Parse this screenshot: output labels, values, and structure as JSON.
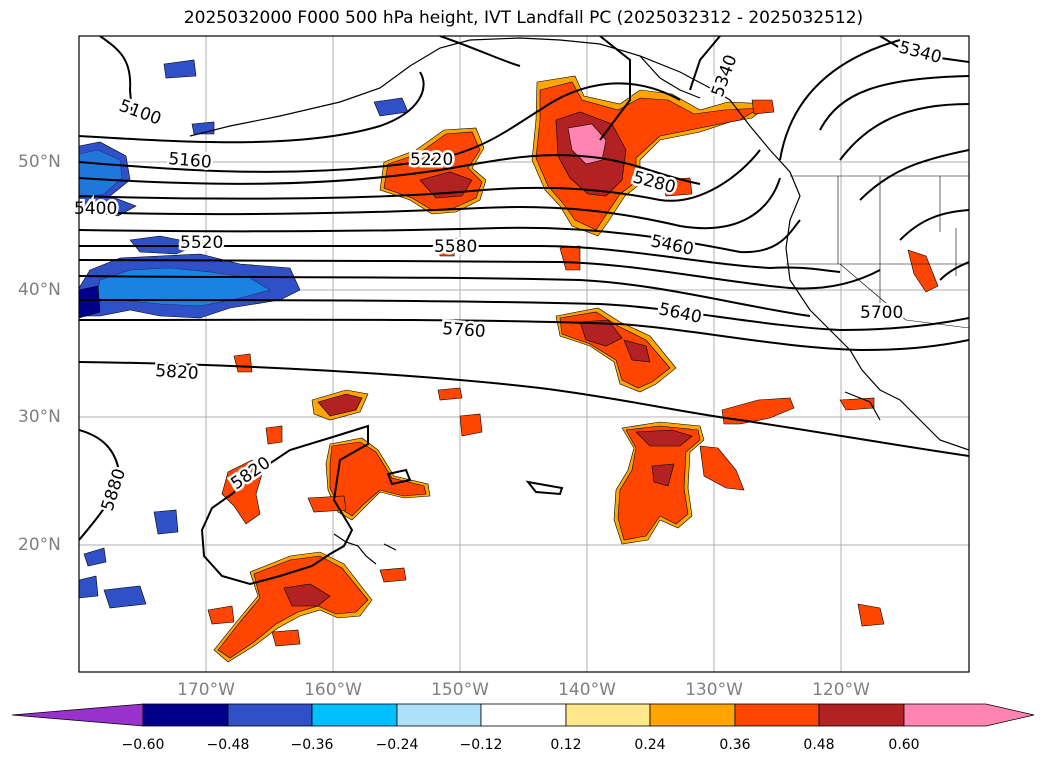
{
  "title": "2025032000 F000 500 hPa height, IVT Landfall PC (2025032312 - 2025032512)",
  "lat_labels": [
    "50°N",
    "40°N",
    "30°N",
    "20°N"
  ],
  "lon_labels": [
    "170°W",
    "160°W",
    "150°W",
    "140°W",
    "130°W",
    "120°W"
  ],
  "contour_labels": [
    "5100",
    "5160",
    "5220",
    "5280",
    "5340",
    "5400",
    "5460",
    "5520",
    "5580",
    "5640",
    "5700",
    "5760",
    "5820",
    "5820",
    "5880"
  ],
  "colorbar": {
    "ticks": [
      "−0.60",
      "−0.48",
      "−0.36",
      "−0.24",
      "−0.12",
      "0.12",
      "0.24",
      "0.36",
      "0.48",
      "0.60"
    ],
    "colors": [
      "#9932cc",
      "#00008b",
      "#3050c8",
      "#00bfff",
      "#aee0f8",
      "#ffffff",
      "#ffe88a",
      "#ffa500",
      "#ff4500",
      "#b22222",
      "#ff85b0",
      "#ff85b0"
    ]
  }
}
